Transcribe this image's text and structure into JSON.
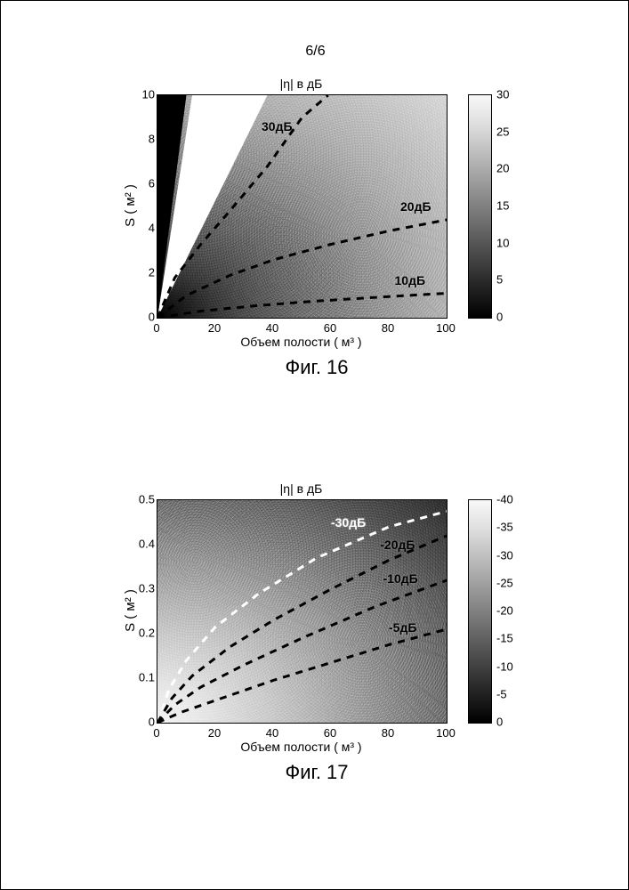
{
  "page_number": "6/6",
  "fig16": {
    "caption": "Фиг. 16",
    "title": "|η| в дБ",
    "xlabel": "Объем полости  ( м³ )",
    "ylabel": "S ( м² )",
    "xlim": [
      0,
      100
    ],
    "xtick_step": 20,
    "ylim": [
      0,
      10
    ],
    "ytick_step": 2,
    "cbar": {
      "min": 0,
      "max": 30,
      "step": 5,
      "reverse": false,
      "gradient": "linear-gradient(to top,#000000,#202020,#404040,#606060,#808080,#a0a0a0,#c0c0c0,#e0e0e0,#f8f8f8)"
    },
    "field_gradient": "radial-gradient(ellipse 180% 190% at 0% 100%, #000 0%, #151515 4%, #2a2a2a 8%, #3e3e3e 12%, #525252 17%, #696969 24%, #808080 32%, #9a9a9a 42%, #b4b4b4 54%, #cccccc 68%, #e4e4e4 83%, #f5f5f5 94%, #ffffff 100%)",
    "black_wedge": "polygon(0% 100%, 0% 0%, 10% 0%)",
    "white_wedge": "polygon(0% 100%, 12% 0%, 38% 0%)",
    "contours": [
      {
        "label": "30дБ",
        "color": "#000",
        "points": [
          [
            0,
            0
          ],
          [
            6,
            1.8
          ],
          [
            15,
            3.3
          ],
          [
            25,
            4.8
          ],
          [
            38,
            6.8
          ],
          [
            50,
            9
          ],
          [
            59,
            10
          ]
        ],
        "lx": 36,
        "ly": 8.6
      },
      {
        "label": "20дБ",
        "color": "#000",
        "points": [
          [
            0,
            0
          ],
          [
            10,
            1.0
          ],
          [
            25,
            1.9
          ],
          [
            40,
            2.6
          ],
          [
            60,
            3.3
          ],
          [
            80,
            3.9
          ],
          [
            100,
            4.4
          ]
        ],
        "lx": 84,
        "ly": 5.0
      },
      {
        "label": "10дБ",
        "color": "#000",
        "points": [
          [
            0,
            0
          ],
          [
            15,
            0.3
          ],
          [
            35,
            0.55
          ],
          [
            55,
            0.75
          ],
          [
            80,
            0.95
          ],
          [
            100,
            1.1
          ]
        ],
        "lx": 82,
        "ly": 1.7
      }
    ]
  },
  "fig17": {
    "caption": "Фиг. 17",
    "title": "|η| в дБ",
    "xlabel": "Объем полости  ( м³ )",
    "ylabel": "S ( м² )",
    "xlim": [
      0,
      100
    ],
    "xtick_step": 20,
    "ylim": [
      0,
      0.5
    ],
    "ytick_step": 0.1,
    "cbar": {
      "min": -40,
      "max": 0,
      "step": 5,
      "reverse": true,
      "gradient": "linear-gradient(to top,#000000,#202020,#404040,#606060,#808080,#a0a0a0,#c0c0c0,#e0e0e0,#f8f8f8)"
    },
    "field_gradient": "radial-gradient(ellipse 200% 200% at 0% 100%, #f5f5f5 0%, #eaeaea 7%, #dcdcdc 13%, #cccccc 20%, #bcbcbc 26%, #a8a8a8 33%, #949494 40%, #808080 47%, #6a6a6a 54%, #545454 60%, #3e3e3e 67%, #262626 74%, #101010 80%, #000000 86%)",
    "contours": [
      {
        "label": "-30дБ",
        "color": "#fff",
        "label_color": "#fff",
        "points": [
          [
            0,
            0
          ],
          [
            4,
            0.075
          ],
          [
            10,
            0.14
          ],
          [
            20,
            0.215
          ],
          [
            35,
            0.29
          ],
          [
            55,
            0.37
          ],
          [
            80,
            0.44
          ],
          [
            100,
            0.475
          ]
        ],
        "lx": 60,
        "ly": 0.45
      },
      {
        "label": "-20дБ",
        "color": "#000",
        "points": [
          [
            0,
            0
          ],
          [
            5,
            0.055
          ],
          [
            12,
            0.105
          ],
          [
            25,
            0.17
          ],
          [
            40,
            0.23
          ],
          [
            60,
            0.3
          ],
          [
            80,
            0.365
          ],
          [
            100,
            0.42
          ]
        ],
        "lx": 77,
        "ly": 0.4
      },
      {
        "label": "-10дБ",
        "color": "#000",
        "points": [
          [
            0,
            0
          ],
          [
            6,
            0.04
          ],
          [
            15,
            0.08
          ],
          [
            30,
            0.13
          ],
          [
            50,
            0.19
          ],
          [
            75,
            0.26
          ],
          [
            100,
            0.32
          ]
        ],
        "lx": 78,
        "ly": 0.325
      },
      {
        "label": "-5дБ",
        "color": "#000",
        "points": [
          [
            0,
            0
          ],
          [
            8,
            0.023
          ],
          [
            20,
            0.05
          ],
          [
            40,
            0.095
          ],
          [
            60,
            0.135
          ],
          [
            80,
            0.175
          ],
          [
            100,
            0.21
          ]
        ],
        "lx": 80,
        "ly": 0.215
      }
    ]
  },
  "style": {
    "dash": "8,7",
    "stroke_width": 3,
    "font": "Arial",
    "title_fontsize": 14,
    "label_fontsize": 14,
    "tick_fontsize": 13,
    "caption_fontsize": 22,
    "page_border": "#000000",
    "background": "#ffffff"
  }
}
